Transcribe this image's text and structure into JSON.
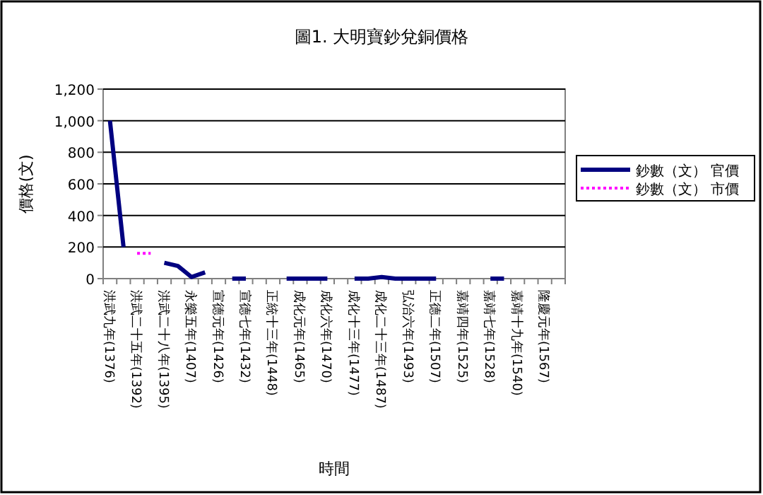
{
  "chart_data": {
    "type": "line",
    "title": "圖1. 大明寶鈔兌銅價格",
    "xlabel": "時間",
    "ylabel": "價格(文)",
    "categories": [
      "洪武九年(1376)",
      null,
      "洪武二十五年(1392)",
      null,
      "洪武二十八年(1395)",
      null,
      "永樂五年(1407)",
      null,
      "宣德元年(1426)",
      null,
      "宣德七年(1432)",
      null,
      "正統十三年(1448)",
      null,
      "成化元年(1465)",
      null,
      "成化六年(1470)",
      null,
      "成化十三年(1477)",
      null,
      "成化二十三年(1487)",
      null,
      "弘治六年(1493)",
      null,
      "正德二年(1507)",
      null,
      "嘉靖四年(1525)",
      null,
      "嘉靖七年(1528)",
      null,
      "嘉靖十九年(1540)",
      null,
      "隆慶元年(1567)",
      null
    ],
    "series": [
      {
        "name": "鈔數（文） 官價",
        "color": "#000080",
        "line_style": "solid",
        "values": [
          1000,
          200,
          null,
          null,
          100,
          80,
          10,
          40,
          null,
          0,
          0,
          null,
          null,
          0,
          0,
          0,
          0,
          null,
          0,
          0,
          10,
          0,
          0,
          0,
          0,
          null,
          null,
          null,
          0,
          0,
          null,
          null,
          null,
          null
        ]
      },
      {
        "name": "鈔數（文） 市價",
        "color": "#ff00ff",
        "line_style": "dotted",
        "values": [
          null,
          null,
          160,
          160,
          null,
          null,
          null,
          null,
          null,
          null,
          null,
          null,
          null,
          null,
          null,
          null,
          null,
          null,
          null,
          null,
          null,
          null,
          null,
          null,
          null,
          null,
          null,
          null,
          null,
          null,
          null,
          null,
          null,
          null
        ]
      }
    ],
    "ylim": [
      0,
      1200
    ],
    "yticks": [
      0,
      200,
      400,
      600,
      800,
      {
        "value": 1000,
        "label": "1,000"
      },
      {
        "value": 1200,
        "label": "1,200"
      }
    ],
    "grid": "y",
    "legend": "right"
  }
}
